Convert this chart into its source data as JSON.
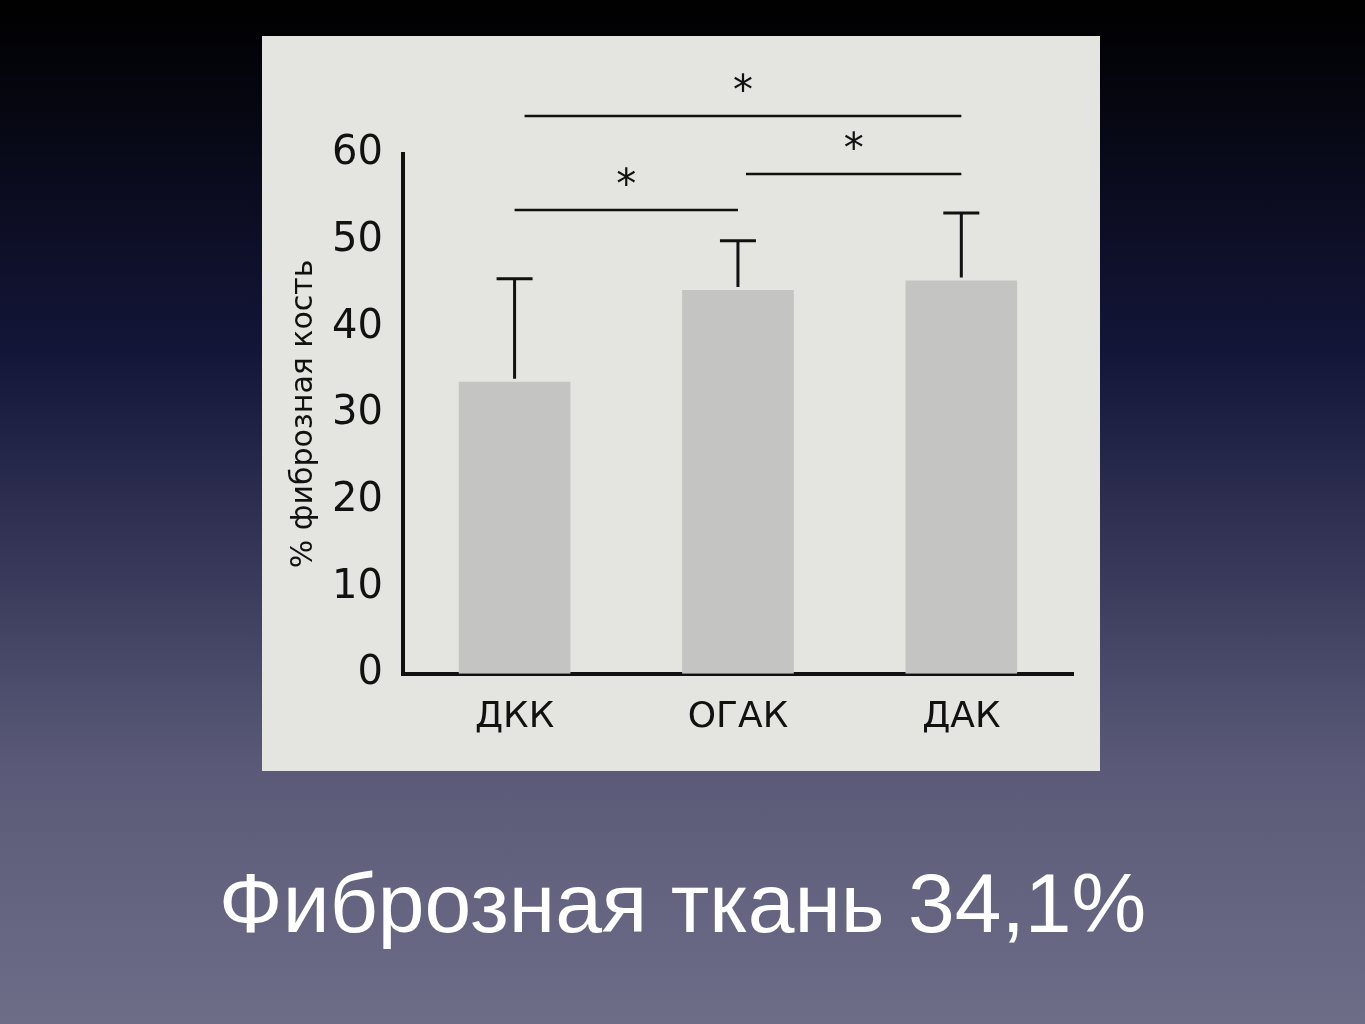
{
  "chart_data": {
    "type": "bar",
    "ylabel": "% фиброзная кость",
    "categories": [
      "ДКК",
      "ОГАК",
      "ДАК"
    ],
    "values": [
      33.7,
      44.3,
      45.4
    ],
    "errors": [
      [
        33.7,
        45.6
      ],
      [
        44.3,
        50
      ],
      [
        45.4,
        53.2
      ]
    ],
    "color": "#c4c4c2",
    "ylim": [
      0,
      60
    ],
    "yticks": [
      0,
      10,
      20,
      30,
      40,
      50,
      60
    ],
    "grid": false,
    "legend": false,
    "annotations": [
      "*",
      "*",
      "*",
      "Фиброзная ткань 34,1%"
    ]
  }
}
